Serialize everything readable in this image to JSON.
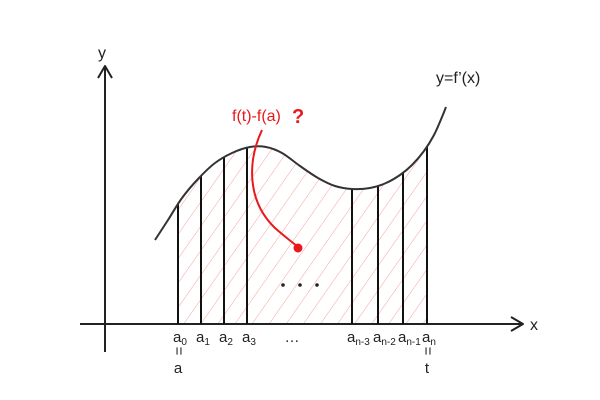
{
  "axes": {
    "x_label": "x",
    "y_label": "y"
  },
  "curve": {
    "label": "y=f’(x)"
  },
  "question": {
    "text": "f(t)-f(a)",
    "mark": "?"
  },
  "ticks": [
    {
      "main": "a",
      "sub": "0"
    },
    {
      "main": "a",
      "sub": "1"
    },
    {
      "main": "a",
      "sub": "2"
    },
    {
      "main": "a",
      "sub": "3"
    },
    {
      "main": "…",
      "sub": ""
    },
    {
      "main": "a",
      "sub": "n-3"
    },
    {
      "main": "a",
      "sub": "n-2"
    },
    {
      "main": "a",
      "sub": "n-1"
    },
    {
      "main": "a",
      "sub": "n"
    }
  ],
  "endpoints": {
    "equals_sign": "=",
    "start": "a",
    "end": "t"
  },
  "colors": {
    "accent": "#e8191c",
    "hatch": "#f4a3a3",
    "ink": "#222222"
  }
}
